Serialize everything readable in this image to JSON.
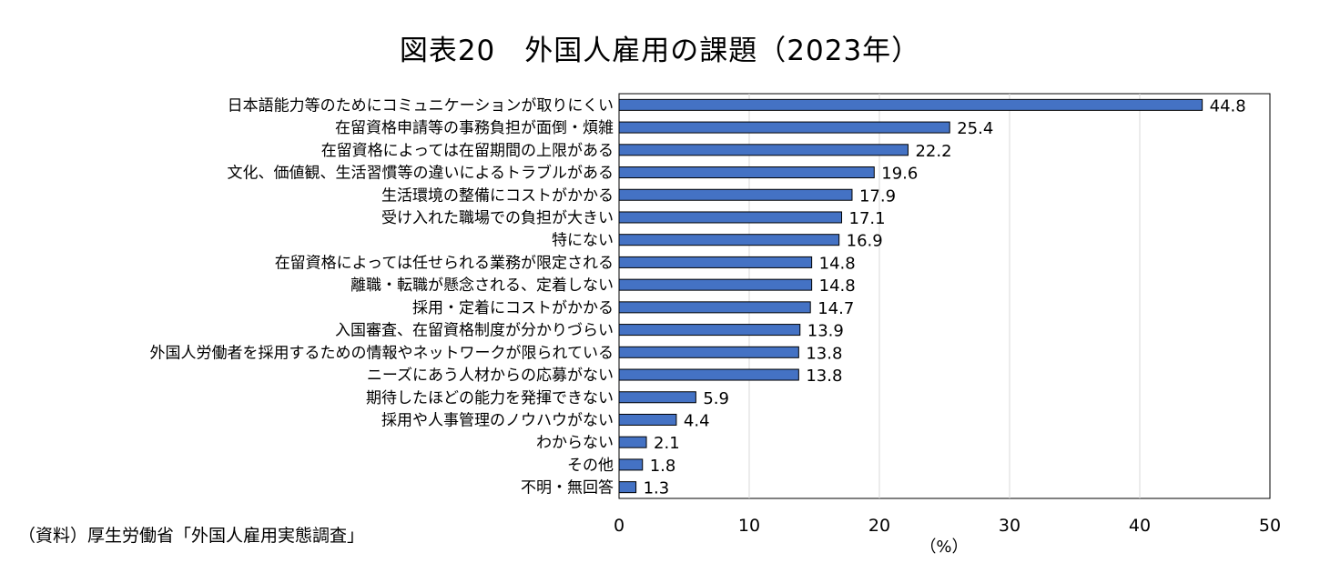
{
  "chart_data": {
    "type": "bar",
    "orientation": "horizontal",
    "title": "図表20　外国人雇用の課題（2023年）",
    "xlabel": "（%）",
    "ylabel": "",
    "xlim": [
      0,
      50
    ],
    "x_ticks": [
      0,
      10,
      20,
      30,
      40,
      50
    ],
    "grid": "vertical",
    "bar_color": "#4472C4",
    "categories": [
      "日本語能力等のためにコミュニケーションが取りにくい",
      "在留資格申請等の事務負担が面倒・煩雑",
      "在留資格によっては在留期間の上限がある",
      "文化、価値観、生活習慣等の違いによるトラブルがある",
      "生活環境の整備にコストがかかる",
      "受け入れた職場での負担が大きい",
      "特にない",
      "在留資格によっては任せられる業務が限定される",
      "離職・転職が懸念される、定着しない",
      "採用・定着にコストがかかる",
      "入国審査、在留資格制度が分かりづらい",
      "外国人労働者を採用するための情報やネットワークが限られている",
      "ニーズにあう人材からの応募がない",
      "期待したほどの能力を発揮できない",
      "採用や人事管理のノウハウがない",
      "わからない",
      "その他",
      "不明・無回答"
    ],
    "values": [
      44.8,
      25.4,
      22.2,
      19.6,
      17.9,
      17.1,
      16.9,
      14.8,
      14.8,
      14.7,
      13.9,
      13.8,
      13.8,
      5.9,
      4.4,
      2.1,
      1.8,
      1.3
    ],
    "value_labels": [
      "44.8",
      "25.4",
      "22.2",
      "19.6",
      "17.9",
      "17.1",
      "16.9",
      "14.8",
      "14.8",
      "14.7",
      "13.9",
      "13.8",
      "13.8",
      "5.9",
      "4.4",
      "2.1",
      "1.8",
      "1.3"
    ]
  },
  "source": "（資料）厚生労働省「外国人雇用実態調査」"
}
